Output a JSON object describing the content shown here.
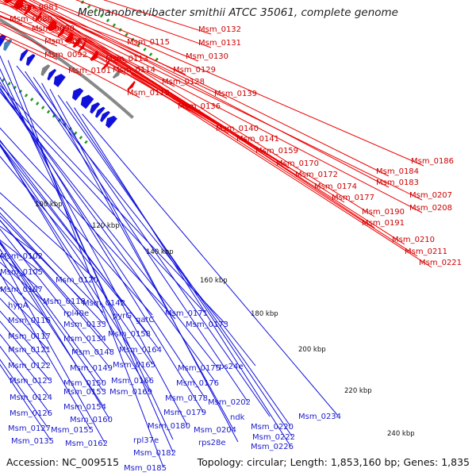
{
  "header": {
    "title": "Methanobrevibacter smithii ATCC 35061, complete genome"
  },
  "footer": {
    "accession": "Accession: NC_009515",
    "topology": "Topology: circular; Length: 1,853,160 bp; Genes: 1,835"
  },
  "scale_ticks": [
    {
      "label": "100 kbp"
    },
    {
      "label": "120 kbp"
    },
    {
      "label": "140 kbp"
    },
    {
      "label": "160 kbp"
    },
    {
      "label": "180 kbp"
    },
    {
      "label": "200 kbp"
    },
    {
      "label": "220 kbp"
    },
    {
      "label": "240 kbp"
    }
  ],
  "outer_labels": [
    {
      "text": "Msm_0081"
    },
    {
      "text": "Msm_0080"
    },
    {
      "text": "Msm_0090"
    },
    {
      "text": "Msm_0087"
    },
    {
      "text": "Msm_0092"
    },
    {
      "text": "Msm_0101"
    },
    {
      "text": "Msm_0115"
    },
    {
      "text": "Msm_0113"
    },
    {
      "text": "Msm_0114"
    },
    {
      "text": "Msm_0119"
    },
    {
      "text": "Msm_0132"
    },
    {
      "text": "Msm_0131"
    },
    {
      "text": "Msm_0130"
    },
    {
      "text": "Msm_0129"
    },
    {
      "text": "Msm_0128"
    },
    {
      "text": "Msm_0139"
    },
    {
      "text": "Msm_0136"
    },
    {
      "text": "Msm_0140"
    },
    {
      "text": "Msm_0141"
    },
    {
      "text": "Msm_0159"
    },
    {
      "text": "Msm_0170"
    },
    {
      "text": "Msm_0172"
    },
    {
      "text": "Msm_0174"
    },
    {
      "text": "Msm_0177"
    },
    {
      "text": "Msm_0186"
    },
    {
      "text": "Msm_0184"
    },
    {
      "text": "Msm_0183"
    },
    {
      "text": "Msm_0190"
    },
    {
      "text": "Msm_0191"
    },
    {
      "text": "Msm_0207"
    },
    {
      "text": "Msm_0208"
    },
    {
      "text": "Msm_0210"
    },
    {
      "text": "Msm_0211"
    },
    {
      "text": "Msm_0221"
    }
  ],
  "inner_labels": [
    {
      "text": "Msm_0102"
    },
    {
      "text": "Msm_0105"
    },
    {
      "text": "Msm_0107"
    },
    {
      "text": "hypA"
    },
    {
      "text": "Msm_0116"
    },
    {
      "text": "Msm_0117"
    },
    {
      "text": "Msm_0121"
    },
    {
      "text": "Msm_0122"
    },
    {
      "text": "Msm_0123"
    },
    {
      "text": "Msm_0124"
    },
    {
      "text": "Msm_0126"
    },
    {
      "text": "Msm_0127"
    },
    {
      "text": "Msm_0135"
    },
    {
      "text": "Msm_0120"
    },
    {
      "text": "Msm_0118"
    },
    {
      "text": "rpl40e"
    },
    {
      "text": "Msm_0133"
    },
    {
      "text": "Msm_0134"
    },
    {
      "text": "Msm_0148"
    },
    {
      "text": "Msm_0149"
    },
    {
      "text": "Msm_0150"
    },
    {
      "text": "Msm_0153"
    },
    {
      "text": "Msm_0154"
    },
    {
      "text": "Msm_0155"
    },
    {
      "text": "Msm_0160"
    },
    {
      "text": "Msm_0162"
    },
    {
      "text": "Msm_0142"
    },
    {
      "text": "pyrG"
    },
    {
      "text": "gatC"
    },
    {
      "text": "Msm_0158"
    },
    {
      "text": "Msm_0164"
    },
    {
      "text": "Msm_0165"
    },
    {
      "text": "Msm_0166"
    },
    {
      "text": "Msm_0169"
    },
    {
      "text": "Msm_0171"
    },
    {
      "text": "Msm_0173"
    },
    {
      "text": "Msm_0175"
    },
    {
      "text": "Msm_0176"
    },
    {
      "text": "Msm_0178"
    },
    {
      "text": "Msm_0179"
    },
    {
      "text": "Msm_0180"
    },
    {
      "text": "rpl37e"
    },
    {
      "text": "Msm_0182"
    },
    {
      "text": "Msm_0185"
    },
    {
      "text": "rps24e"
    },
    {
      "text": "Msm_0202"
    },
    {
      "text": "ndk"
    },
    {
      "text": "Msm_0204"
    },
    {
      "text": "rps28e"
    },
    {
      "text": "Msm_0220"
    },
    {
      "text": "Msm_0222"
    },
    {
      "text": "Msm_0226"
    },
    {
      "text": "Msm_0234"
    }
  ],
  "colors": {
    "forward_gene": "#ee0000",
    "reverse_gene": "#1010dd",
    "backbone": "#888888",
    "gc_marks": "#229922",
    "outer_label": "#cc0000",
    "inner_label": "#1a1acc"
  }
}
